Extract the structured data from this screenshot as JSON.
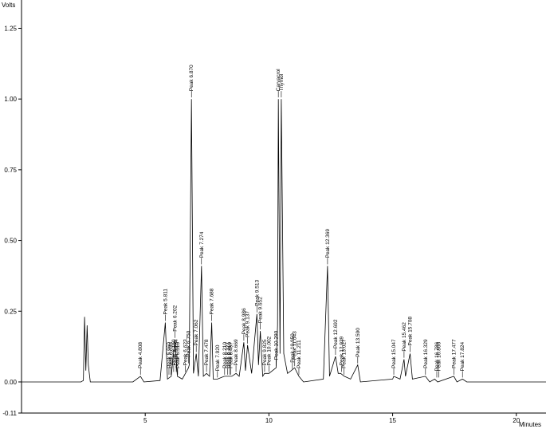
{
  "chart_data": {
    "type": "line",
    "title": "",
    "xlabel": "Minutes",
    "ylabel": "Volts",
    "xlim": [
      0,
      21.2
    ],
    "ylim": [
      -0.11,
      1.35
    ],
    "x_ticks": [
      "5",
      "10",
      "15",
      "20"
    ],
    "y_ticks": [
      "1.25",
      "1.00",
      "0.75",
      "0.50",
      "0.25",
      "0.00",
      "-0.11"
    ],
    "grid": false,
    "series": [
      {
        "name": "",
        "points": [
          [
            0.0,
            0.0
          ],
          [
            2.4,
            0.0
          ],
          [
            2.5,
            0.005
          ],
          [
            2.55,
            0.23
          ],
          [
            2.6,
            0.04
          ],
          [
            2.65,
            0.2
          ],
          [
            2.7,
            0.06
          ],
          [
            2.78,
            0.0
          ],
          [
            4.5,
            0.0
          ],
          [
            4.808,
            0.02
          ],
          [
            4.95,
            0.0
          ],
          [
            5.6,
            0.005
          ],
          [
            5.811,
            0.21
          ],
          [
            5.9,
            0.01
          ],
          [
            6.05,
            0.02
          ],
          [
            6.202,
            0.15
          ],
          [
            6.3,
            0.02
          ],
          [
            6.5,
            0.01
          ],
          [
            6.623,
            0.03
          ],
          [
            6.75,
            0.05
          ],
          [
            6.78,
            0.06
          ],
          [
            6.87,
            1.0
          ],
          [
            6.95,
            0.03
          ],
          [
            7.062,
            0.1
          ],
          [
            7.15,
            0.02
          ],
          [
            7.274,
            0.41
          ],
          [
            7.35,
            0.02
          ],
          [
            7.478,
            0.03
          ],
          [
            7.6,
            0.02
          ],
          [
            7.688,
            0.21
          ],
          [
            7.75,
            0.01
          ],
          [
            7.92,
            0.01
          ],
          [
            8.2,
            0.02
          ],
          [
            8.5,
            0.02
          ],
          [
            8.669,
            0.03
          ],
          [
            8.8,
            0.02
          ],
          [
            8.986,
            0.14
          ],
          [
            9.05,
            0.04
          ],
          [
            9.137,
            0.13
          ],
          [
            9.3,
            0.03
          ],
          [
            9.513,
            0.24
          ],
          [
            9.58,
            0.06
          ],
          [
            9.652,
            0.18
          ],
          [
            9.75,
            0.02
          ],
          [
            9.825,
            0.03
          ],
          [
            10.0,
            0.03
          ],
          [
            10.29,
            0.05
          ],
          [
            10.35,
            0.2
          ],
          [
            10.38,
            1.0
          ],
          [
            10.45,
            0.1
          ],
          [
            10.5,
            1.0
          ],
          [
            10.6,
            0.1
          ],
          [
            10.75,
            0.03
          ],
          [
            10.9,
            0.04
          ],
          [
            11.04,
            0.05
          ],
          [
            11.211,
            0.02
          ],
          [
            11.4,
            0.0
          ],
          [
            12.2,
            0.01
          ],
          [
            12.369,
            0.41
          ],
          [
            12.45,
            0.02
          ],
          [
            12.692,
            0.09
          ],
          [
            12.8,
            0.03
          ],
          [
            12.9,
            0.03
          ],
          [
            13.05,
            0.02
          ],
          [
            13.3,
            0.01
          ],
          [
            13.59,
            0.06
          ],
          [
            13.7,
            0.0
          ],
          [
            15.0,
            0.01
          ],
          [
            15.047,
            0.02
          ],
          [
            15.3,
            0.01
          ],
          [
            15.462,
            0.08
          ],
          [
            15.52,
            0.02
          ],
          [
            15.708,
            0.1
          ],
          [
            15.8,
            0.01
          ],
          [
            16.329,
            0.02
          ],
          [
            16.5,
            0.0
          ],
          [
            16.7,
            0.01
          ],
          [
            16.82,
            0.0
          ],
          [
            17.477,
            0.02
          ],
          [
            17.6,
            0.0
          ],
          [
            17.824,
            0.01
          ],
          [
            18.0,
            0.0
          ],
          [
            21.2,
            0.0
          ]
        ]
      }
    ],
    "annotations": [
      {
        "text": "Peak 4.808",
        "x": 4.808,
        "y": 0.02
      },
      {
        "text": "Peak 5.811",
        "x": 5.811,
        "y": 0.21
      },
      {
        "text": "Peak 5.960",
        "x": 5.96,
        "y": 0.02
      },
      {
        "text": "Peak 6.035",
        "x": 6.035,
        "y": 0.02
      },
      {
        "text": "Peak 6.150",
        "x": 6.15,
        "y": 0.03
      },
      {
        "text": "Peak 6.202",
        "x": 6.202,
        "y": 0.15
      },
      {
        "text": "Peak 6.254",
        "x": 6.254,
        "y": 0.03
      },
      {
        "text": "Peak 6.310",
        "x": 6.31,
        "y": 0.02
      },
      {
        "text": "Peak 6.623",
        "x": 6.623,
        "y": 0.03
      },
      {
        "text": "Peak 6.750",
        "x": 6.75,
        "y": 0.06
      },
      {
        "text": "Peak 6.870",
        "x": 6.87,
        "y": 1.0
      },
      {
        "text": "Peak 7.062",
        "x": 7.062,
        "y": 0.1
      },
      {
        "text": "Peak 7.274",
        "x": 7.274,
        "y": 0.41
      },
      {
        "text": "Peak 7.478",
        "x": 7.478,
        "y": 0.03
      },
      {
        "text": "Peak 7.688",
        "x": 7.688,
        "y": 0.21
      },
      {
        "text": "Peak 7.920",
        "x": 7.92,
        "y": 0.01
      },
      {
        "text": "Peak 8.210",
        "x": 8.21,
        "y": 0.02
      },
      {
        "text": "Peak 8.327",
        "x": 8.327,
        "y": 0.02
      },
      {
        "text": "Peak 8.410",
        "x": 8.41,
        "y": 0.02
      },
      {
        "text": "Peak 8.457",
        "x": 8.457,
        "y": 0.02
      },
      {
        "text": "Peak 8.669",
        "x": 8.669,
        "y": 0.03
      },
      {
        "text": "Peak 8.986",
        "x": 8.986,
        "y": 0.14
      },
      {
        "text": "Peak 9.137",
        "x": 9.137,
        "y": 0.13
      },
      {
        "text": "Peak 9.513",
        "x": 9.513,
        "y": 0.24
      },
      {
        "text": "Peak 9.652",
        "x": 9.652,
        "y": 0.18
      },
      {
        "text": "Peak 9.825",
        "x": 9.825,
        "y": 0.03
      },
      {
        "text": "Peak 10.002",
        "x": 10.002,
        "y": 0.03
      },
      {
        "text": "Peak 10.290",
        "x": 10.29,
        "y": 0.05
      },
      {
        "text": "Carvacrol",
        "x": 10.38,
        "y": 1.0
      },
      {
        "text": "Thymol",
        "x": 10.5,
        "y": 1.0
      },
      {
        "text": "Peak 10.950",
        "x": 10.95,
        "y": 0.04
      },
      {
        "text": "Peak 11.043",
        "x": 11.043,
        "y": 0.05
      },
      {
        "text": "Peak 11.211",
        "x": 11.211,
        "y": 0.02
      },
      {
        "text": "Peak 12.369",
        "x": 12.369,
        "y": 0.41
      },
      {
        "text": "Peak 12.692",
        "x": 12.692,
        "y": 0.09
      },
      {
        "text": "Peak 12.939",
        "x": 12.939,
        "y": 0.03
      },
      {
        "text": "Peak 13.027",
        "x": 13.027,
        "y": 0.02
      },
      {
        "text": "Peak 13.590",
        "x": 13.59,
        "y": 0.06
      },
      {
        "text": "Peak 15.047",
        "x": 15.047,
        "y": 0.02
      },
      {
        "text": "Peak 15.462",
        "x": 15.462,
        "y": 0.08
      },
      {
        "text": "Peak 15.708",
        "x": 15.708,
        "y": 0.1
      },
      {
        "text": "Peak 16.329",
        "x": 16.329,
        "y": 0.02
      },
      {
        "text": "Peak 16.786",
        "x": 16.786,
        "y": 0.01
      },
      {
        "text": "Peak 16.866",
        "x": 16.866,
        "y": 0.01
      },
      {
        "text": "Peak 17.477",
        "x": 17.477,
        "y": 0.02
      },
      {
        "text": "Peak 17.824",
        "x": 17.824,
        "y": 0.01
      }
    ]
  }
}
